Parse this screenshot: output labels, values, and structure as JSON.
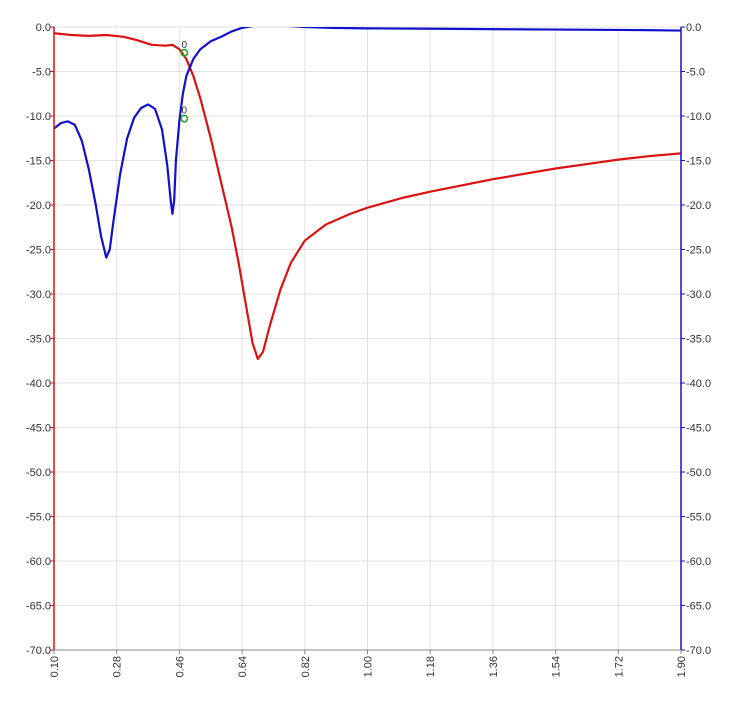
{
  "chart_data": {
    "type": "line",
    "title": "",
    "xlabel": "",
    "ylabel_left": "",
    "ylabel_right": "",
    "xlim": [
      0.1,
      1.9
    ],
    "ylim": [
      -70.0,
      0.0
    ],
    "grid": true,
    "x_ticks": [
      0.1,
      0.28,
      0.46,
      0.64,
      0.82,
      1.0,
      1.18,
      1.36,
      1.54,
      1.72,
      1.9
    ],
    "x_tick_labels": [
      "0.10",
      "0.28",
      "0.46",
      "0.64",
      "0.82",
      "1.00",
      "1.18",
      "1.36",
      "1.54",
      "1.72",
      "1.90"
    ],
    "y_ticks": [
      0,
      -5,
      -10,
      -15,
      -20,
      -25,
      -30,
      -35,
      -40,
      -45,
      -50,
      -55,
      -60,
      -65,
      -70
    ],
    "y_tick_labels": [
      "0.0",
      "-5.0",
      "-10.0",
      "-15.0",
      "-20.0",
      "-25.0",
      "-30.0",
      "-35.0",
      "-40.0",
      "-45.0",
      "-50.0",
      "-55.0",
      "-60.0",
      "-65.0",
      "-70.0"
    ],
    "series": [
      {
        "color": "#dd1111",
        "axis": "left",
        "points": [
          [
            0.1,
            -0.7
          ],
          [
            0.15,
            -0.9
          ],
          [
            0.2,
            -1.0
          ],
          [
            0.25,
            -0.9
          ],
          [
            0.3,
            -1.1
          ],
          [
            0.34,
            -1.5
          ],
          [
            0.38,
            -2.0
          ],
          [
            0.42,
            -2.1
          ],
          [
            0.44,
            -2.0
          ],
          [
            0.46,
            -2.5
          ],
          [
            0.48,
            -3.6
          ],
          [
            0.5,
            -5.5
          ],
          [
            0.52,
            -8.0
          ],
          [
            0.55,
            -12.5
          ],
          [
            0.58,
            -17.5
          ],
          [
            0.61,
            -22.5
          ],
          [
            0.63,
            -26.5
          ],
          [
            0.65,
            -31.0
          ],
          [
            0.67,
            -35.5
          ],
          [
            0.685,
            -37.3
          ],
          [
            0.7,
            -36.5
          ],
          [
            0.72,
            -33.5
          ],
          [
            0.75,
            -29.5
          ],
          [
            0.78,
            -26.5
          ],
          [
            0.82,
            -24.0
          ],
          [
            0.88,
            -22.2
          ],
          [
            0.95,
            -21.0
          ],
          [
            1.0,
            -20.3
          ],
          [
            1.1,
            -19.2
          ],
          [
            1.18,
            -18.5
          ],
          [
            1.27,
            -17.8
          ],
          [
            1.36,
            -17.1
          ],
          [
            1.45,
            -16.5
          ],
          [
            1.54,
            -15.9
          ],
          [
            1.63,
            -15.4
          ],
          [
            1.72,
            -14.9
          ],
          [
            1.81,
            -14.5
          ],
          [
            1.9,
            -14.2
          ]
        ]
      },
      {
        "color": "#1111cc",
        "axis": "right",
        "points": [
          [
            0.1,
            -11.4
          ],
          [
            0.12,
            -10.8
          ],
          [
            0.14,
            -10.6
          ],
          [
            0.16,
            -11.0
          ],
          [
            0.18,
            -12.8
          ],
          [
            0.2,
            -16.0
          ],
          [
            0.22,
            -20.0
          ],
          [
            0.235,
            -23.5
          ],
          [
            0.25,
            -25.9
          ],
          [
            0.26,
            -25.0
          ],
          [
            0.27,
            -22.0
          ],
          [
            0.29,
            -16.5
          ],
          [
            0.31,
            -12.5
          ],
          [
            0.33,
            -10.2
          ],
          [
            0.35,
            -9.1
          ],
          [
            0.37,
            -8.7
          ],
          [
            0.39,
            -9.2
          ],
          [
            0.41,
            -11.5
          ],
          [
            0.425,
            -15.5
          ],
          [
            0.435,
            -19.5
          ],
          [
            0.44,
            -21.0
          ],
          [
            0.445,
            -19.5
          ],
          [
            0.45,
            -15.0
          ],
          [
            0.46,
            -10.5
          ],
          [
            0.47,
            -7.5
          ],
          [
            0.48,
            -5.5
          ],
          [
            0.5,
            -3.6
          ],
          [
            0.52,
            -2.5
          ],
          [
            0.55,
            -1.6
          ],
          [
            0.58,
            -1.1
          ],
          [
            0.61,
            -0.5
          ],
          [
            0.64,
            -0.1
          ],
          [
            0.7,
            0.3
          ],
          [
            0.82,
            0.0
          ],
          [
            0.9,
            -0.1
          ],
          [
            1.0,
            -0.15
          ],
          [
            1.2,
            -0.2
          ],
          [
            1.4,
            -0.25
          ],
          [
            1.6,
            -0.3
          ],
          [
            1.8,
            -0.35
          ],
          [
            1.9,
            -0.4
          ]
        ]
      }
    ],
    "markers": [
      {
        "label": "0",
        "x": 0.474,
        "y": -2.9,
        "color": "#22aa22"
      },
      {
        "label": "0",
        "x": 0.474,
        "y": -10.3,
        "color": "#22aa22"
      }
    ]
  }
}
